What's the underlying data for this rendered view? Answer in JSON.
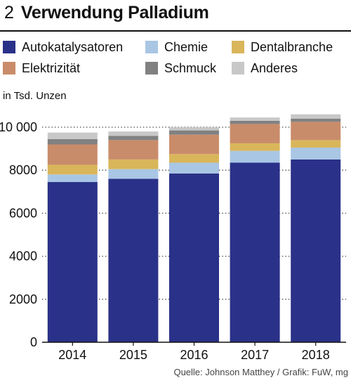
{
  "figure": {
    "number": "2",
    "title": "Verwendung Palladium",
    "source": "Quelle: Johnson Matthey / Grafik: FuW, mg"
  },
  "chart_data": {
    "type": "bar",
    "stacked": true,
    "unit_label": "in Tsd. Unzen",
    "categories": [
      "2014",
      "2015",
      "2016",
      "2017",
      "2018"
    ],
    "series": [
      {
        "name": "Autokatalysatoren",
        "color": "#2a3188",
        "values": [
          7450,
          7600,
          7850,
          8350,
          8500
        ]
      },
      {
        "name": "Chemie",
        "color": "#a9c6e4",
        "values": [
          350,
          450,
          500,
          550,
          550
        ]
      },
      {
        "name": "Dentalbranche",
        "color": "#d9b65a",
        "values": [
          450,
          450,
          400,
          350,
          350
        ]
      },
      {
        "name": "Elektrizität",
        "color": "#c98c6a",
        "values": [
          950,
          900,
          900,
          900,
          850
        ]
      },
      {
        "name": "Schmuck",
        "color": "#818181",
        "values": [
          250,
          200,
          200,
          150,
          150
        ]
      },
      {
        "name": "Anderes",
        "color": "#c8c8c8",
        "values": [
          300,
          200,
          150,
          150,
          200
        ]
      }
    ],
    "y_ticks": [
      0,
      2000,
      4000,
      6000,
      8000,
      10000
    ],
    "y_tick_labels": [
      "0",
      "2000",
      "4000",
      "6000",
      "8000",
      "10 000"
    ],
    "ylim": [
      0,
      10000
    ],
    "grid": "dotted horizontal",
    "legend_position": "top"
  }
}
